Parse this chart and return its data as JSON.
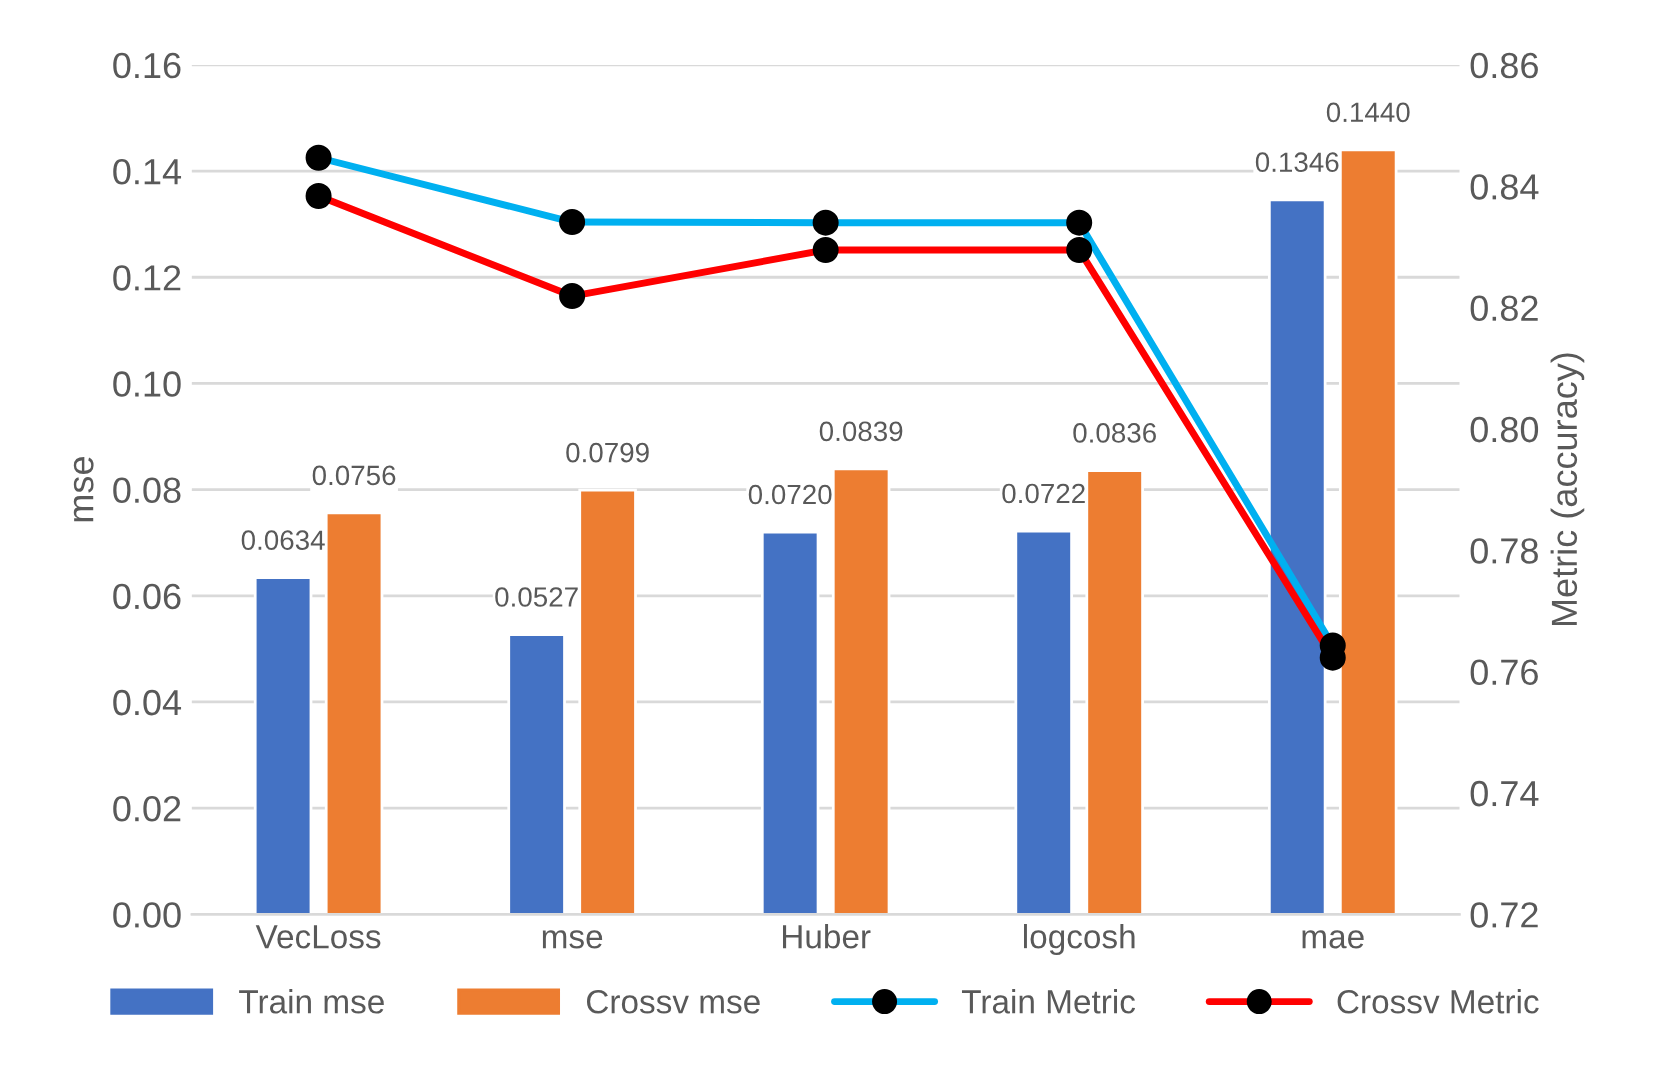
{
  "chart_data": {
    "type": "bar",
    "categories": [
      "VecLoss",
      "mse",
      "Huber",
      "logcosh",
      "mae"
    ],
    "ylabel": "mse",
    "y2label": "Metric (accuracy)",
    "ylim": [
      0,
      0.16
    ],
    "yticks": [
      {
        "value": 0,
        "label": "0.00"
      },
      {
        "value": 0.02,
        "label": "0.02"
      },
      {
        "value": 0.04,
        "label": "0.04"
      },
      {
        "value": 0.06,
        "label": "0.06"
      },
      {
        "value": 0.08,
        "label": "0.08"
      },
      {
        "value": 0.1,
        "label": "0.10"
      },
      {
        "value": 0.12,
        "label": "0.12"
      },
      {
        "value": 0.14,
        "label": "0.14"
      },
      {
        "value": 0.16,
        "label": "0.16"
      }
    ],
    "y2lim": [
      0.72,
      0.86
    ],
    "y2ticks": [
      {
        "value": 0.72,
        "label": "0.72"
      },
      {
        "value": 0.74,
        "label": "0.74"
      },
      {
        "value": 0.76,
        "label": "0.76"
      },
      {
        "value": 0.78,
        "label": "0.78"
      },
      {
        "value": 0.8,
        "label": "0.80"
      },
      {
        "value": 0.82,
        "label": "0.82"
      },
      {
        "value": 0.84,
        "label": "0.84"
      },
      {
        "value": 0.86,
        "label": "0.86"
      }
    ],
    "grid": "y",
    "legend": "bottom",
    "marker": "circle",
    "series": [
      {
        "name": "Train mse",
        "color": "#4472c4",
        "values": [
          0.0634,
          0.0527,
          0.072,
          0.0722,
          0.1346
        ],
        "value_labels": [
          "0.0634",
          "0.0527",
          "0.0720",
          "0.0722",
          "0.1346"
        ]
      },
      {
        "name": "Crossv mse",
        "color": "#ed7d31",
        "values": [
          0.0756,
          0.0799,
          0.0839,
          0.0836,
          0.144
        ],
        "value_labels": [
          "0.0756",
          "0.0799",
          "0.0839",
          "0.0836",
          "0.1440"
        ]
      },
      {
        "name": "Train Metric",
        "type": "line",
        "axis": "y2",
        "color": "#00b0f0",
        "values": [
          0.8447,
          0.8341,
          0.834,
          0.834,
          0.7643
        ]
      },
      {
        "name": "Crossv Metric",
        "type": "line",
        "axis": "y2",
        "color": "#ff0000",
        "values": [
          0.8384,
          0.8219,
          0.8295,
          0.8295,
          0.7623
        ]
      }
    ]
  }
}
